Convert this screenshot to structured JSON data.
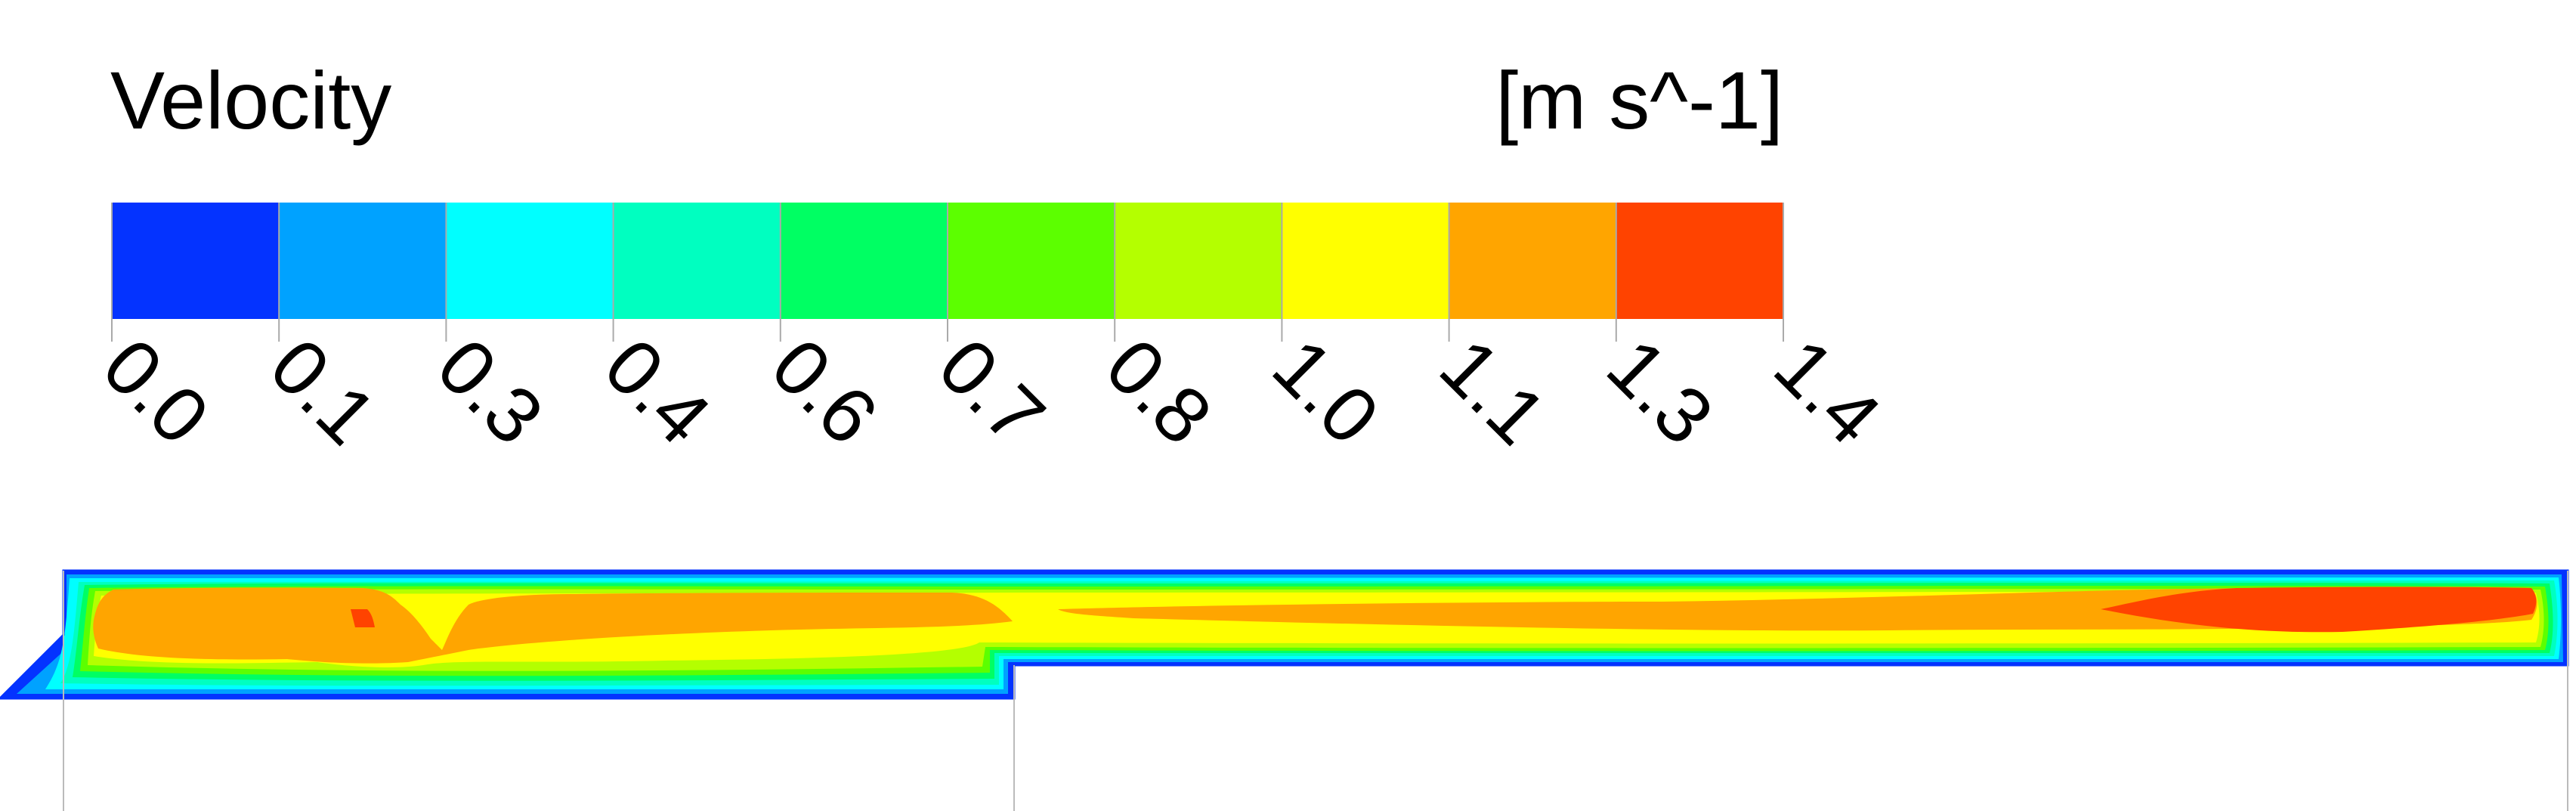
{
  "chart_data": {
    "type": "heatmap",
    "title": "Velocity",
    "unit": "[m s^-1]",
    "legend_ticks": [
      "0.0",
      "0.1",
      "0.3",
      "0.4",
      "0.6",
      "0.7",
      "0.8",
      "1.0",
      "1.1",
      "1.3",
      "1.4"
    ],
    "range": [
      0.0,
      1.4
    ],
    "levels": 10,
    "level_colors": [
      "#0433ff",
      "#00a2ff",
      "#00ffff",
      "#00ffc0",
      "#00ff63",
      "#5cff00",
      "#b4ff00",
      "#ffff00",
      "#ffa500",
      "#ff4300"
    ],
    "tick_line_color": "#aaaaaa",
    "frame_color": "#888888"
  }
}
